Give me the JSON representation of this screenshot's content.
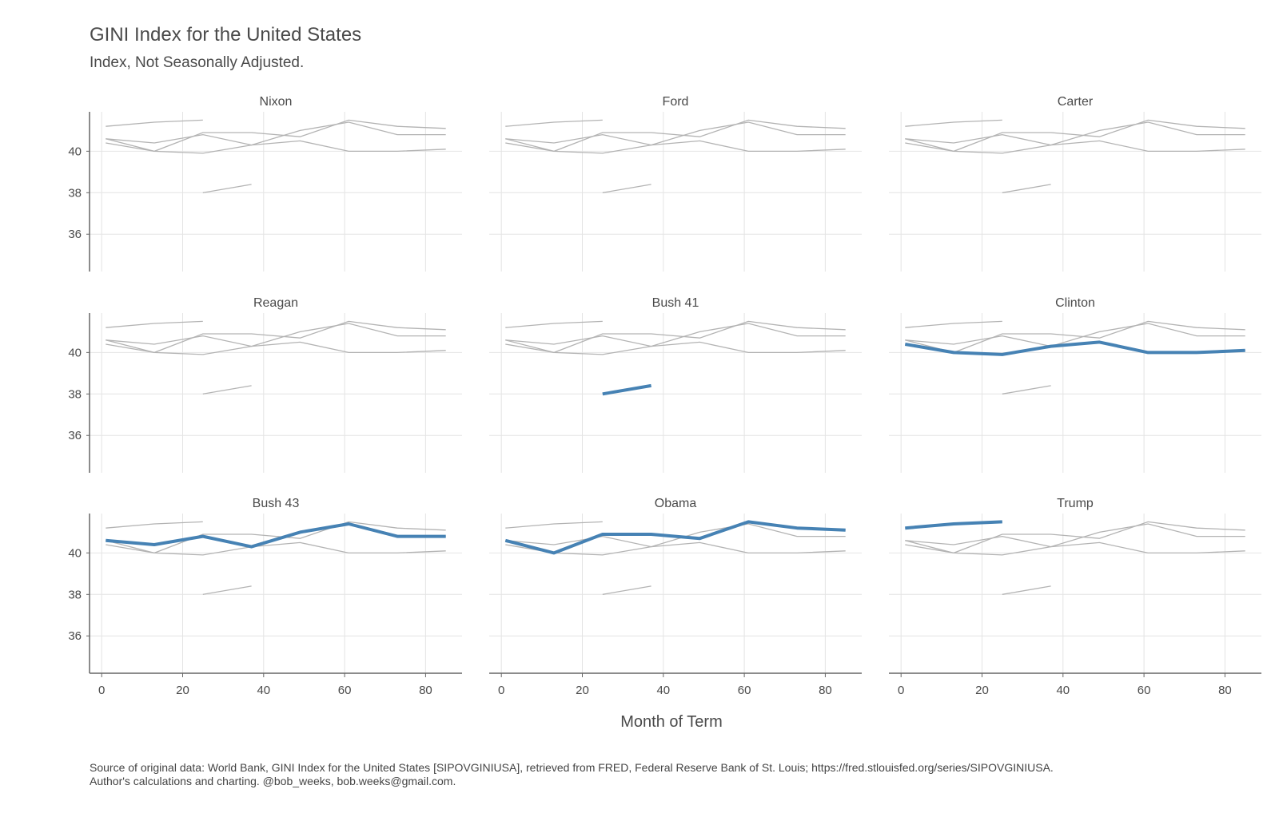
{
  "title": "GINI Index for the United States",
  "subtitle": "Index, Not Seasonally Adjusted.",
  "caption_line1": "Source of original data: World Bank, GINI Index for the United States [SIPOVGINIUSA], retrieved from FRED, Federal Reserve Bank of St. Louis; https://fred.stlouisfed.org/series/SIPOVGINIUSA.",
  "caption_line2": "Author's calculations and charting. @bob_weeks, bob.weeks@gmail.com.",
  "colors": {
    "highlight": "#4682b4",
    "background_series": "#b3b3b3",
    "grid": "#e4e4e4",
    "axis": "#666666"
  },
  "chart_data": {
    "type": "line",
    "layout": "small-multiples 3x3",
    "xlabel": "Month of Term",
    "ylabel": "",
    "xlim": [
      -3,
      89
    ],
    "ylim": [
      34.2,
      41.9
    ],
    "x_ticks": [
      0,
      20,
      40,
      60,
      80
    ],
    "y_ticks": [
      36,
      38,
      40
    ],
    "grid": true,
    "panels": [
      "Nixon",
      "Ford",
      "Carter",
      "Reagan",
      "Bush 41",
      "Clinton",
      "Bush 43",
      "Obama",
      "Trump"
    ],
    "series": [
      {
        "name": "Nixon",
        "x": [],
        "values": []
      },
      {
        "name": "Ford",
        "x": [],
        "values": []
      },
      {
        "name": "Carter",
        "x": [],
        "values": []
      },
      {
        "name": "Reagan",
        "x": [],
        "values": []
      },
      {
        "name": "Bush 41",
        "x": [
          25,
          37
        ],
        "values": [
          38.0,
          38.4
        ]
      },
      {
        "name": "Clinton",
        "x": [
          1,
          13,
          25,
          37,
          49,
          61,
          73,
          85
        ],
        "values": [
          40.4,
          40.0,
          39.9,
          40.3,
          40.5,
          40.0,
          40.0,
          40.1
        ]
      },
      {
        "name": "Bush 43",
        "x": [
          1,
          13,
          25,
          37,
          49,
          61,
          73,
          85
        ],
        "values": [
          40.6,
          40.4,
          40.8,
          40.3,
          41.0,
          41.4,
          40.8,
          40.8
        ]
      },
      {
        "name": "Obama",
        "x": [
          1,
          13,
          25,
          37,
          49,
          61,
          73,
          85
        ],
        "values": [
          40.6,
          40.0,
          40.9,
          40.9,
          40.7,
          41.5,
          41.2,
          41.1
        ]
      },
      {
        "name": "Trump",
        "x": [
          1,
          13,
          25
        ],
        "values": [
          41.2,
          41.4,
          41.5
        ]
      }
    ]
  }
}
